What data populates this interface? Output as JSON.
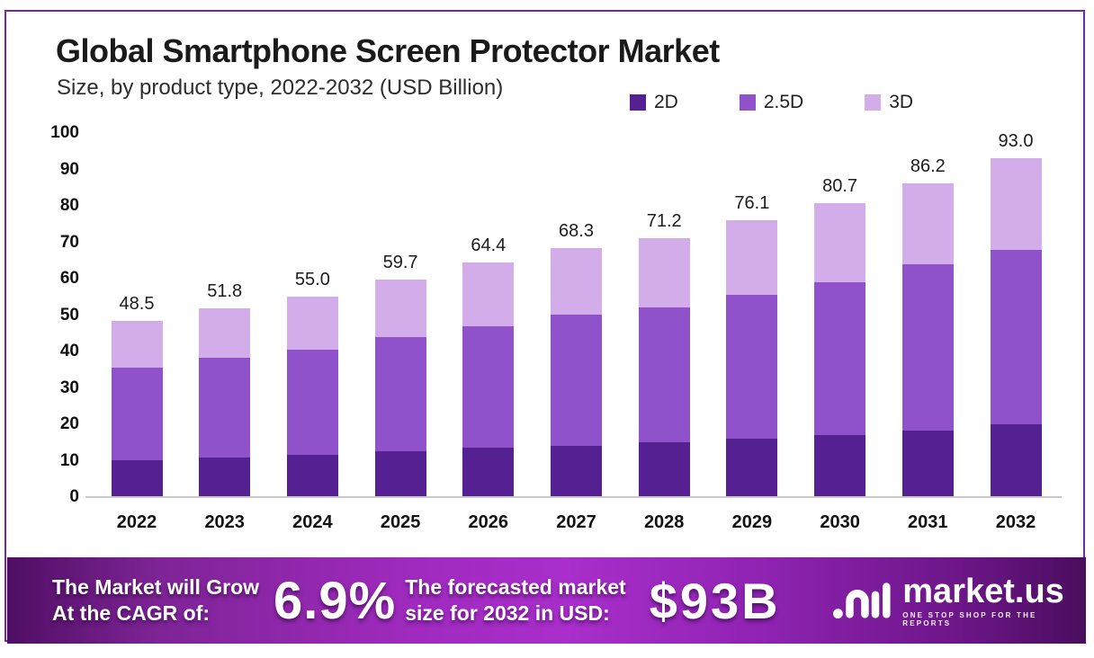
{
  "chart_data": {
    "type": "bar",
    "stacked": true,
    "title": "Global Smartphone Screen Protector Market",
    "subtitle": "Size, by product type, 2022-2032 (USD Billion)",
    "categories": [
      "2022",
      "2023",
      "2024",
      "2025",
      "2026",
      "2027",
      "2028",
      "2029",
      "2030",
      "2031",
      "2032"
    ],
    "series": [
      {
        "name": "2D",
        "color": "#552092",
        "values": [
          10.0,
          10.8,
          11.5,
          12.5,
          13.5,
          14.0,
          15.0,
          16.0,
          17.0,
          18.3,
          20.0
        ]
      },
      {
        "name": "2.5D",
        "color": "#8f52cb",
        "values": [
          25.5,
          27.5,
          29.0,
          31.5,
          33.5,
          36.0,
          37.0,
          39.5,
          42.0,
          45.7,
          48.0
        ]
      },
      {
        "name": "3D",
        "color": "#d3adea",
        "values": [
          13.0,
          13.5,
          14.5,
          15.7,
          17.4,
          18.3,
          19.2,
          20.6,
          21.7,
          22.2,
          25.0
        ]
      }
    ],
    "totals": [
      "48.5",
      "51.8",
      "55.0",
      "59.7",
      "64.4",
      "68.3",
      "71.2",
      "76.1",
      "80.7",
      "86.2",
      "93.0"
    ],
    "ylabel": "",
    "xlabel": "",
    "ylim": [
      0,
      100
    ],
    "ytick_step": 10,
    "grid": false,
    "legend_position": "top-right"
  },
  "banner": {
    "left_line1": "The Market will Grow",
    "left_line2": "At the CAGR of:",
    "cagr_value": "6.9%",
    "mid_line1": "The forecasted market",
    "mid_line2": "size for 2032 in USD:",
    "forecast_value": "$93B",
    "brand": "market.us",
    "tagline": "ONE STOP SHOP FOR THE REPORTS"
  },
  "colors": {
    "frame_border": "#7229a3",
    "axis_line": "#c9c9c9",
    "banner_center": "#a02abf",
    "banner_edge": "#4f0e63"
  }
}
